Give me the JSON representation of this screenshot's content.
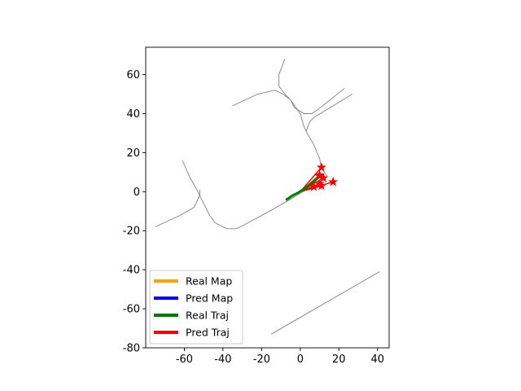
{
  "chart_data": {
    "type": "line",
    "title": "",
    "xlabel": "",
    "ylabel": "",
    "xlim": [
      -80,
      46
    ],
    "ylim": [
      -80,
      74
    ],
    "xticks": [
      -60,
      -40,
      -20,
      0,
      20,
      40
    ],
    "yticks": [
      -80,
      -60,
      -40,
      -20,
      0,
      20,
      40,
      60
    ],
    "grid": false,
    "legend_placement": "lower-left",
    "legend": [
      {
        "name": "Real Map",
        "color": "#ffa500"
      },
      {
        "name": "Pred Map",
        "color": "#0000ff"
      },
      {
        "name": "Real Traj",
        "color": "#008000"
      },
      {
        "name": "Pred Traj",
        "color": "#ff0000"
      }
    ],
    "map_lines": {
      "color": "#808080",
      "polylines": [
        [
          [
            -75,
            -18
          ],
          [
            -62,
            -12
          ],
          [
            -55,
            -8
          ],
          [
            -52,
            -2
          ],
          [
            -52,
            1
          ]
        ],
        [
          [
            -61,
            16
          ],
          [
            -57,
            7
          ],
          [
            -53,
            0
          ],
          [
            -51,
            -4
          ],
          [
            -47,
            -12
          ],
          [
            -44,
            -16
          ]
        ],
        [
          [
            -44,
            -16
          ],
          [
            -38,
            -19
          ],
          [
            -33,
            -19
          ],
          [
            -29,
            -17
          ]
        ],
        [
          [
            -29,
            -17
          ],
          [
            -16,
            -10
          ]
        ],
        [
          [
            -16,
            -10
          ],
          [
            -7,
            -5
          ],
          [
            -2,
            -2
          ],
          [
            3,
            1
          ]
        ],
        [
          [
            -35,
            44
          ],
          [
            -22,
            50
          ],
          [
            -13,
            52
          ],
          [
            -9,
            50
          ],
          [
            -5,
            47
          ]
        ],
        [
          [
            -5,
            47
          ],
          [
            -3,
            43
          ],
          [
            2,
            40
          ],
          [
            6,
            40
          ],
          [
            9,
            42
          ]
        ],
        [
          [
            9,
            42
          ],
          [
            23,
            53
          ]
        ],
        [
          [
            -8,
            68
          ],
          [
            -11,
            60
          ],
          [
            -11,
            54
          ],
          [
            -8,
            50
          ],
          [
            -5,
            47
          ]
        ],
        [
          [
            -5,
            47
          ],
          [
            0,
            40
          ],
          [
            2,
            33
          ],
          [
            3,
            31
          ],
          [
            5,
            36
          ],
          [
            7,
            38
          ]
        ],
        [
          [
            7,
            38
          ],
          [
            27,
            50
          ]
        ],
        [
          [
            3,
            31
          ],
          [
            7,
            24
          ],
          [
            10,
            17
          ],
          [
            11,
            12
          ],
          [
            14,
            8
          ]
        ],
        [
          [
            -15,
            -73
          ],
          [
            41,
            -41
          ]
        ]
      ]
    },
    "series": [
      {
        "name": "Real Traj",
        "color": "#008000",
        "points": [
          [
            -7,
            -4
          ],
          [
            -4,
            -2
          ],
          [
            -1,
            -0.5
          ],
          [
            2,
            1.5
          ],
          [
            5,
            3.5
          ],
          [
            8,
            6
          ],
          [
            10,
            8
          ]
        ]
      },
      {
        "name": "Pred Traj",
        "color": "#ff0000",
        "origin": [
          0,
          0
        ],
        "endpoints": [
          [
            11,
            12.5
          ],
          [
            10,
            8.5
          ],
          [
            12,
            7
          ],
          [
            10,
            4
          ],
          [
            17,
            5
          ],
          [
            11,
            3
          ],
          [
            7,
            2.5
          ]
        ]
      }
    ]
  }
}
